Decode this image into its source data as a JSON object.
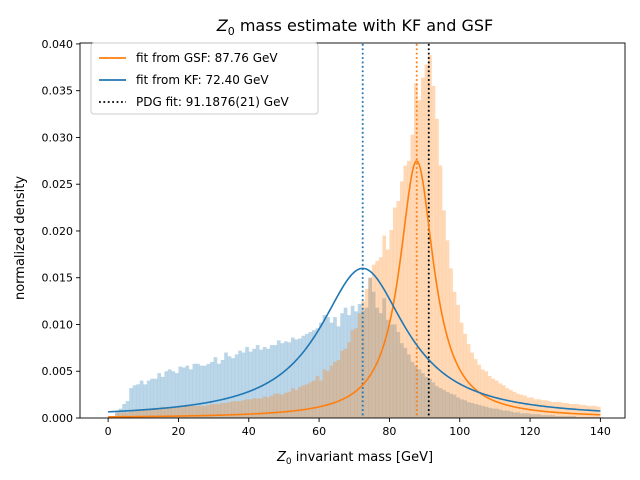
{
  "chart_data": {
    "type": "histogram",
    "title_prefix": "Z",
    "title_subscript": "0",
    "title_suffix": " mass estimate with KF and GSF",
    "xlabel_prefix": "Z",
    "xlabel_subscript": "0",
    "xlabel_suffix": " invariant mass [GeV]",
    "ylabel": "normalized density",
    "xlim": [
      -8,
      147
    ],
    "ylim": [
      0,
      0.0401
    ],
    "xticks": [
      0,
      20,
      40,
      60,
      80,
      100,
      120,
      140
    ],
    "xtick_labels": [
      "0",
      "20",
      "40",
      "60",
      "80",
      "100",
      "120",
      "140"
    ],
    "yticks": [
      0.0,
      0.005,
      0.01,
      0.015,
      0.02,
      0.025,
      0.03,
      0.035,
      0.04
    ],
    "ytick_labels": [
      "0.000",
      "0.005",
      "0.010",
      "0.015",
      "0.020",
      "0.025",
      "0.030",
      "0.035",
      "0.040"
    ],
    "legend_position": "top-left",
    "legend": [
      {
        "label": "fit from GSF: 87.76 GeV",
        "color": "#ff7f0e",
        "style": "solid"
      },
      {
        "label": "fit from KF: 72.40 GeV",
        "color": "#1f77b4",
        "style": "solid"
      },
      {
        "label": "PDG fit: 91.1876(21) GeV",
        "color": "#000000",
        "style": "dotted"
      }
    ],
    "bins": {
      "start": 0,
      "width": 1,
      "count": 140
    },
    "series": [
      {
        "name": "KF",
        "color": "#1f77b4",
        "alpha": 0.3,
        "values": [
          0,
          0.0,
          0.0008,
          0.001,
          0.0015,
          0.0018,
          0.0032,
          0.0035,
          0.0036,
          0.004,
          0.0036,
          0.004,
          0.0042,
          0.0042,
          0.0048,
          0.0044,
          0.005,
          0.0052,
          0.005,
          0.0048,
          0.0055,
          0.0054,
          0.0056,
          0.0052,
          0.0058,
          0.0058,
          0.0056,
          0.0056,
          0.0058,
          0.006,
          0.0065,
          0.0058,
          0.0062,
          0.007,
          0.0066,
          0.0064,
          0.0068,
          0.0072,
          0.007,
          0.0076,
          0.0071,
          0.0074,
          0.0078,
          0.0073,
          0.0076,
          0.0074,
          0.0078,
          0.0078,
          0.0083,
          0.008,
          0.0082,
          0.0081,
          0.0086,
          0.0084,
          0.0085,
          0.0088,
          0.009,
          0.0092,
          0.0094,
          0.0096,
          0.0102,
          0.011,
          0.0108,
          0.0102,
          0.0108,
          0.0098,
          0.0112,
          0.0118,
          0.011,
          0.012,
          0.0114,
          0.0122,
          0.0115,
          0.0118,
          0.015,
          0.0135,
          0.0118,
          0.0112,
          0.0128,
          0.0105,
          0.01,
          0.01,
          0.0092,
          0.008,
          0.0075,
          0.0068,
          0.006,
          0.0056,
          0.0052,
          0.0048,
          0.0044,
          0.0042,
          0.0038,
          0.0034,
          0.0032,
          0.003,
          0.0028,
          0.0026,
          0.0025,
          0.0022,
          0.002,
          0.0019,
          0.0017,
          0.0016,
          0.0015,
          0.0014,
          0.0013,
          0.0012,
          0.0011,
          0.001,
          0.001,
          0.0009,
          0.0008,
          0.0008,
          0.0007,
          0.0006,
          0.0006,
          0.0005,
          0.0005,
          0.0005,
          0.0004,
          0.0004,
          0.0004,
          0.0003,
          0.0003,
          0.0003,
          0.0003,
          0.0002,
          0.0002,
          0.0002,
          0.0002,
          0.0002,
          0.0002,
          0.0001,
          0.0001,
          0.0001,
          0.0001,
          0.0001,
          0.0001,
          0.0001
        ]
      },
      {
        "name": "GSF",
        "color": "#ff7f0e",
        "alpha": 0.3,
        "values": [
          0,
          0.0,
          0.0005,
          0.0006,
          0.0006,
          0.0006,
          0.0007,
          0.0007,
          0.0008,
          0.0009,
          0.0008,
          0.001,
          0.001,
          0.0011,
          0.001,
          0.0012,
          0.0011,
          0.0012,
          0.0012,
          0.0012,
          0.0013,
          0.0012,
          0.0013,
          0.0014,
          0.0013,
          0.0013,
          0.0013,
          0.0013,
          0.0014,
          0.0015,
          0.0015,
          0.0015,
          0.0016,
          0.0016,
          0.0017,
          0.0018,
          0.0018,
          0.0018,
          0.0019,
          0.002,
          0.002,
          0.0021,
          0.0021,
          0.0021,
          0.0023,
          0.0022,
          0.0024,
          0.0026,
          0.0026,
          0.0025,
          0.0027,
          0.0028,
          0.0032,
          0.003,
          0.0033,
          0.0035,
          0.0036,
          0.0038,
          0.004,
          0.0045,
          0.004,
          0.0052,
          0.005,
          0.0056,
          0.006,
          0.0062,
          0.0072,
          0.0074,
          0.0081,
          0.0094,
          0.0096,
          0.0112,
          0.0125,
          0.0138,
          0.015,
          0.0164,
          0.0168,
          0.0172,
          0.0195,
          0.018,
          0.0201,
          0.0225,
          0.0232,
          0.0253,
          0.027,
          0.0275,
          0.0303,
          0.0358,
          0.034,
          0.0364,
          0.0378,
          0.0388,
          0.0355,
          0.032,
          0.027,
          0.0222,
          0.019,
          0.016,
          0.0135,
          0.0121,
          0.0102,
          0.009,
          0.0079,
          0.007,
          0.0063,
          0.0057,
          0.0052,
          0.005,
          0.0045,
          0.0042,
          0.004,
          0.0037,
          0.0035,
          0.0032,
          0.003,
          0.0028,
          0.0026,
          0.0025,
          0.0024,
          0.0022,
          0.0022,
          0.002,
          0.002,
          0.0019,
          0.0019,
          0.0018,
          0.0017,
          0.0017,
          0.0017,
          0.0016,
          0.0016,
          0.0015,
          0.0015,
          0.0015,
          0.0014,
          0.0014,
          0.0013,
          0.0013,
          0.0013,
          0.0012
        ]
      }
    ],
    "fits": [
      {
        "name": "GSF fit",
        "color": "#ff7f0e",
        "peak": 87.76,
        "gamma": 11.8,
        "amplitude": 0.0275
      },
      {
        "name": "KF fit",
        "color": "#1f77b4",
        "peak": 72.4,
        "gamma": 30.0,
        "amplitude": 0.016
      }
    ],
    "vlines": [
      {
        "x": 72.4,
        "color": "#1f77b4",
        "style": "dotted"
      },
      {
        "x": 87.76,
        "color": "#ff7f0e",
        "style": "dotted"
      },
      {
        "x": 91.1876,
        "color": "#000000",
        "style": "dotted"
      }
    ]
  }
}
